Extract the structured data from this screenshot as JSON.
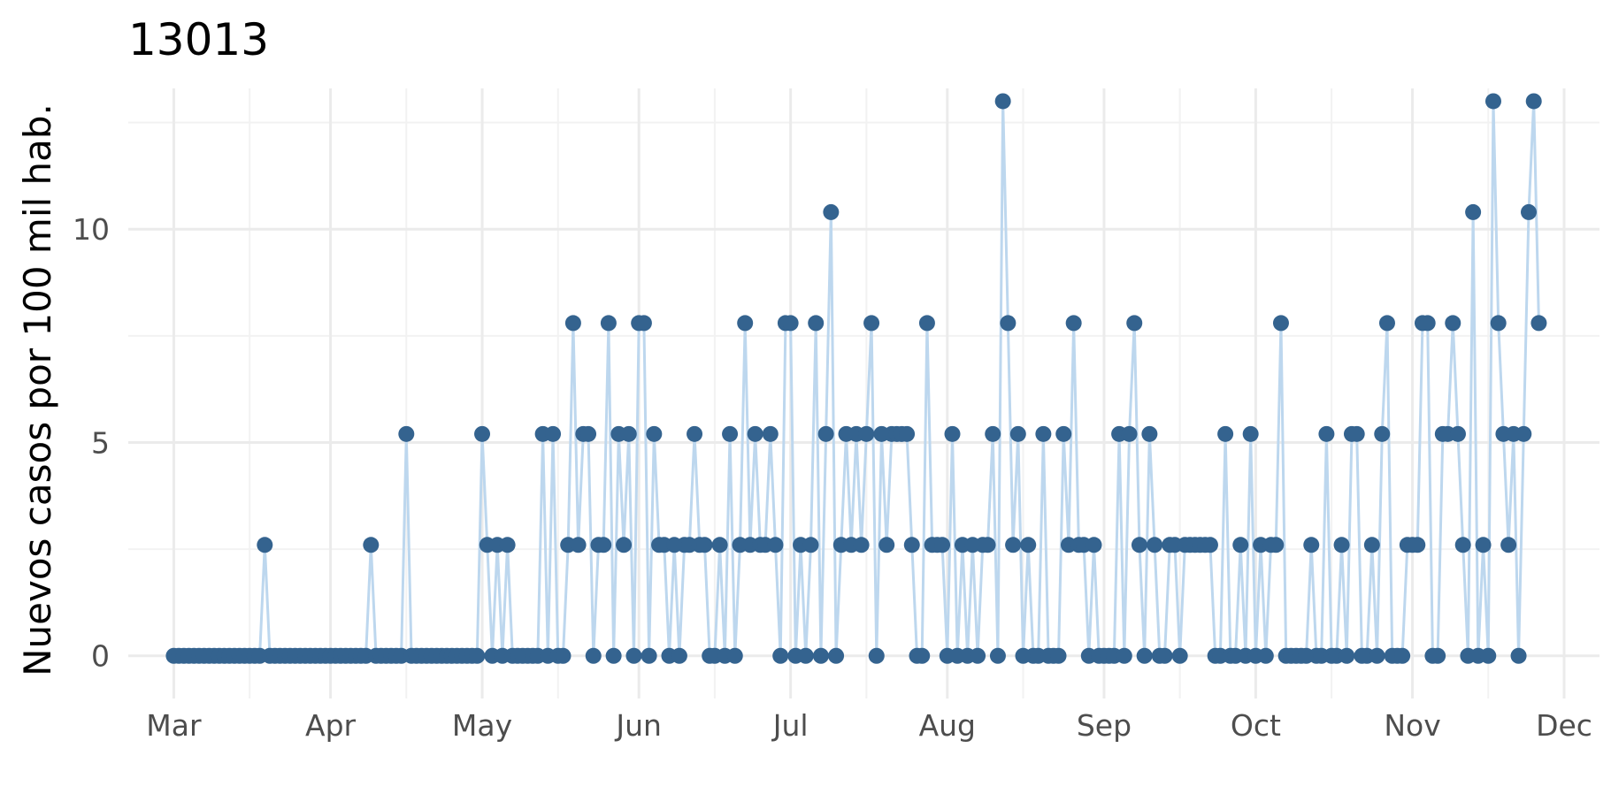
{
  "chart_data": {
    "type": "line",
    "title": "13013",
    "xlabel": "",
    "ylabel": "Nuevos casos por 100 mil hab.",
    "x_axis": {
      "kind": "date",
      "range": [
        "2020-02-21",
        "2020-12-08"
      ],
      "tick_labels": [
        "Mar",
        "Apr",
        "May",
        "Jun",
        "Jul",
        "Aug",
        "Sep",
        "Oct",
        "Nov",
        "Dec"
      ],
      "tick_dates": [
        "2020-03-01",
        "2020-04-01",
        "2020-05-01",
        "2020-06-01",
        "2020-07-01",
        "2020-08-01",
        "2020-09-01",
        "2020-10-01",
        "2020-11-01",
        "2020-12-01"
      ]
    },
    "y_axis": {
      "range": [
        -1,
        13.3
      ],
      "ticks": [
        0,
        5,
        10
      ],
      "tick_labels": [
        "0",
        "5",
        "10"
      ]
    },
    "grid": true,
    "legend": "none",
    "colors": {
      "line": "#bdd7ee",
      "point": "#34638f"
    },
    "series": [
      {
        "values": [
          [
            "2020-03-01",
            0
          ],
          [
            "2020-03-02",
            0
          ],
          [
            "2020-03-03",
            0
          ],
          [
            "2020-03-04",
            0
          ],
          [
            "2020-03-05",
            0
          ],
          [
            "2020-03-06",
            0
          ],
          [
            "2020-03-07",
            0
          ],
          [
            "2020-03-08",
            0
          ],
          [
            "2020-03-09",
            0
          ],
          [
            "2020-03-10",
            0
          ],
          [
            "2020-03-11",
            0
          ],
          [
            "2020-03-12",
            0
          ],
          [
            "2020-03-13",
            0
          ],
          [
            "2020-03-14",
            0
          ],
          [
            "2020-03-15",
            0
          ],
          [
            "2020-03-16",
            0
          ],
          [
            "2020-03-17",
            0
          ],
          [
            "2020-03-18",
            0
          ],
          [
            "2020-03-19",
            2.6
          ],
          [
            "2020-03-20",
            0
          ],
          [
            "2020-03-21",
            0
          ],
          [
            "2020-03-22",
            0
          ],
          [
            "2020-03-23",
            0
          ],
          [
            "2020-03-24",
            0
          ],
          [
            "2020-03-25",
            0
          ],
          [
            "2020-03-26",
            0
          ],
          [
            "2020-03-27",
            0
          ],
          [
            "2020-03-28",
            0
          ],
          [
            "2020-03-29",
            0
          ],
          [
            "2020-03-30",
            0
          ],
          [
            "2020-03-31",
            0
          ],
          [
            "2020-04-01",
            0
          ],
          [
            "2020-04-02",
            0
          ],
          [
            "2020-04-03",
            0
          ],
          [
            "2020-04-04",
            0
          ],
          [
            "2020-04-05",
            0
          ],
          [
            "2020-04-06",
            0
          ],
          [
            "2020-04-07",
            0
          ],
          [
            "2020-04-08",
            0
          ],
          [
            "2020-04-09",
            2.6
          ],
          [
            "2020-04-10",
            0
          ],
          [
            "2020-04-11",
            0
          ],
          [
            "2020-04-12",
            0
          ],
          [
            "2020-04-13",
            0
          ],
          [
            "2020-04-14",
            0
          ],
          [
            "2020-04-15",
            0
          ],
          [
            "2020-04-16",
            5.2
          ],
          [
            "2020-04-17",
            0
          ],
          [
            "2020-04-18",
            0
          ],
          [
            "2020-04-19",
            0
          ],
          [
            "2020-04-20",
            0
          ],
          [
            "2020-04-21",
            0
          ],
          [
            "2020-04-22",
            0
          ],
          [
            "2020-04-23",
            0
          ],
          [
            "2020-04-24",
            0
          ],
          [
            "2020-04-25",
            0
          ],
          [
            "2020-04-26",
            0
          ],
          [
            "2020-04-27",
            0
          ],
          [
            "2020-04-28",
            0
          ],
          [
            "2020-04-29",
            0
          ],
          [
            "2020-04-30",
            0
          ],
          [
            "2020-05-01",
            5.2
          ],
          [
            "2020-05-02",
            2.6
          ],
          [
            "2020-05-03",
            0
          ],
          [
            "2020-05-04",
            2.6
          ],
          [
            "2020-05-05",
            0
          ],
          [
            "2020-05-06",
            2.6
          ],
          [
            "2020-05-07",
            0
          ],
          [
            "2020-05-08",
            0
          ],
          [
            "2020-05-09",
            0
          ],
          [
            "2020-05-10",
            0
          ],
          [
            "2020-05-11",
            0
          ],
          [
            "2020-05-12",
            0
          ],
          [
            "2020-05-13",
            5.2
          ],
          [
            "2020-05-14",
            0
          ],
          [
            "2020-05-15",
            5.2
          ],
          [
            "2020-05-16",
            0
          ],
          [
            "2020-05-17",
            0
          ],
          [
            "2020-05-18",
            2.6
          ],
          [
            "2020-05-19",
            7.8
          ],
          [
            "2020-05-20",
            2.6
          ],
          [
            "2020-05-21",
            5.2
          ],
          [
            "2020-05-22",
            5.2
          ],
          [
            "2020-05-23",
            0
          ],
          [
            "2020-05-24",
            2.6
          ],
          [
            "2020-05-25",
            2.6
          ],
          [
            "2020-05-26",
            7.8
          ],
          [
            "2020-05-27",
            0
          ],
          [
            "2020-05-28",
            5.2
          ],
          [
            "2020-05-29",
            2.6
          ],
          [
            "2020-05-30",
            5.2
          ],
          [
            "2020-05-31",
            0
          ],
          [
            "2020-06-01",
            7.8
          ],
          [
            "2020-06-02",
            7.8
          ],
          [
            "2020-06-03",
            0
          ],
          [
            "2020-06-04",
            5.2
          ],
          [
            "2020-06-05",
            2.6
          ],
          [
            "2020-06-06",
            2.6
          ],
          [
            "2020-06-07",
            0
          ],
          [
            "2020-06-08",
            2.6
          ],
          [
            "2020-06-09",
            0
          ],
          [
            "2020-06-10",
            2.6
          ],
          [
            "2020-06-11",
            2.6
          ],
          [
            "2020-06-12",
            5.2
          ],
          [
            "2020-06-13",
            2.6
          ],
          [
            "2020-06-14",
            2.6
          ],
          [
            "2020-06-15",
            0
          ],
          [
            "2020-06-16",
            0
          ],
          [
            "2020-06-17",
            2.6
          ],
          [
            "2020-06-18",
            0
          ],
          [
            "2020-06-19",
            5.2
          ],
          [
            "2020-06-20",
            0
          ],
          [
            "2020-06-21",
            2.6
          ],
          [
            "2020-06-22",
            7.8
          ],
          [
            "2020-06-23",
            2.6
          ],
          [
            "2020-06-24",
            5.2
          ],
          [
            "2020-06-25",
            2.6
          ],
          [
            "2020-06-26",
            2.6
          ],
          [
            "2020-06-27",
            5.2
          ],
          [
            "2020-06-28",
            2.6
          ],
          [
            "2020-06-29",
            0
          ],
          [
            "2020-06-30",
            7.8
          ],
          [
            "2020-07-01",
            7.8
          ],
          [
            "2020-07-02",
            0
          ],
          [
            "2020-07-03",
            2.6
          ],
          [
            "2020-07-04",
            0
          ],
          [
            "2020-07-05",
            2.6
          ],
          [
            "2020-07-06",
            7.8
          ],
          [
            "2020-07-07",
            0
          ],
          [
            "2020-07-08",
            5.2
          ],
          [
            "2020-07-09",
            10.4
          ],
          [
            "2020-07-10",
            0
          ],
          [
            "2020-07-11",
            2.6
          ],
          [
            "2020-07-12",
            5.2
          ],
          [
            "2020-07-13",
            2.6
          ],
          [
            "2020-07-14",
            5.2
          ],
          [
            "2020-07-15",
            2.6
          ],
          [
            "2020-07-16",
            5.2
          ],
          [
            "2020-07-17",
            7.8
          ],
          [
            "2020-07-18",
            0
          ],
          [
            "2020-07-19",
            5.2
          ],
          [
            "2020-07-20",
            2.6
          ],
          [
            "2020-07-21",
            5.2
          ],
          [
            "2020-07-22",
            5.2
          ],
          [
            "2020-07-23",
            5.2
          ],
          [
            "2020-07-24",
            5.2
          ],
          [
            "2020-07-25",
            2.6
          ],
          [
            "2020-07-26",
            0
          ],
          [
            "2020-07-27",
            0
          ],
          [
            "2020-07-28",
            7.8
          ],
          [
            "2020-07-29",
            2.6
          ],
          [
            "2020-07-30",
            2.6
          ],
          [
            "2020-07-31",
            2.6
          ],
          [
            "2020-08-01",
            0
          ],
          [
            "2020-08-02",
            5.2
          ],
          [
            "2020-08-03",
            0
          ],
          [
            "2020-08-04",
            2.6
          ],
          [
            "2020-08-05",
            0
          ],
          [
            "2020-08-06",
            2.6
          ],
          [
            "2020-08-07",
            0
          ],
          [
            "2020-08-08",
            2.6
          ],
          [
            "2020-08-09",
            2.6
          ],
          [
            "2020-08-10",
            5.2
          ],
          [
            "2020-08-11",
            0
          ],
          [
            "2020-08-12",
            13
          ],
          [
            "2020-08-13",
            7.8
          ],
          [
            "2020-08-14",
            2.6
          ],
          [
            "2020-08-15",
            5.2
          ],
          [
            "2020-08-16",
            0
          ],
          [
            "2020-08-17",
            2.6
          ],
          [
            "2020-08-18",
            0
          ],
          [
            "2020-08-19",
            0
          ],
          [
            "2020-08-20",
            5.2
          ],
          [
            "2020-08-21",
            0
          ],
          [
            "2020-08-22",
            0
          ],
          [
            "2020-08-23",
            0
          ],
          [
            "2020-08-24",
            5.2
          ],
          [
            "2020-08-25",
            2.6
          ],
          [
            "2020-08-26",
            7.8
          ],
          [
            "2020-08-27",
            2.6
          ],
          [
            "2020-08-28",
            2.6
          ],
          [
            "2020-08-29",
            0
          ],
          [
            "2020-08-30",
            2.6
          ],
          [
            "2020-08-31",
            0
          ],
          [
            "2020-09-01",
            0
          ],
          [
            "2020-09-02",
            0
          ],
          [
            "2020-09-03",
            0
          ],
          [
            "2020-09-04",
            5.2
          ],
          [
            "2020-09-05",
            0
          ],
          [
            "2020-09-06",
            5.2
          ],
          [
            "2020-09-07",
            7.8
          ],
          [
            "2020-09-08",
            2.6
          ],
          [
            "2020-09-09",
            0
          ],
          [
            "2020-09-10",
            5.2
          ],
          [
            "2020-09-11",
            2.6
          ],
          [
            "2020-09-12",
            0
          ],
          [
            "2020-09-13",
            0
          ],
          [
            "2020-09-14",
            2.6
          ],
          [
            "2020-09-15",
            2.6
          ],
          [
            "2020-09-16",
            0
          ],
          [
            "2020-09-17",
            2.6
          ],
          [
            "2020-09-18",
            2.6
          ],
          [
            "2020-09-19",
            2.6
          ],
          [
            "2020-09-20",
            2.6
          ],
          [
            "2020-09-21",
            2.6
          ],
          [
            "2020-09-22",
            2.6
          ],
          [
            "2020-09-23",
            0
          ],
          [
            "2020-09-24",
            0
          ],
          [
            "2020-09-25",
            5.2
          ],
          [
            "2020-09-26",
            0
          ],
          [
            "2020-09-27",
            0
          ],
          [
            "2020-09-28",
            2.6
          ],
          [
            "2020-09-29",
            0
          ],
          [
            "2020-09-30",
            5.2
          ],
          [
            "2020-10-01",
            0
          ],
          [
            "2020-10-02",
            2.6
          ],
          [
            "2020-10-03",
            0
          ],
          [
            "2020-10-04",
            2.6
          ],
          [
            "2020-10-05",
            2.6
          ],
          [
            "2020-10-06",
            7.8
          ],
          [
            "2020-10-07",
            0
          ],
          [
            "2020-10-08",
            0
          ],
          [
            "2020-10-09",
            0
          ],
          [
            "2020-10-10",
            0
          ],
          [
            "2020-10-11",
            0
          ],
          [
            "2020-10-12",
            2.6
          ],
          [
            "2020-10-13",
            0
          ],
          [
            "2020-10-14",
            0
          ],
          [
            "2020-10-15",
            5.2
          ],
          [
            "2020-10-16",
            0
          ],
          [
            "2020-10-17",
            0
          ],
          [
            "2020-10-18",
            2.6
          ],
          [
            "2020-10-19",
            0
          ],
          [
            "2020-10-20",
            5.2
          ],
          [
            "2020-10-21",
            5.2
          ],
          [
            "2020-10-22",
            0
          ],
          [
            "2020-10-23",
            0
          ],
          [
            "2020-10-24",
            2.6
          ],
          [
            "2020-10-25",
            0
          ],
          [
            "2020-10-26",
            5.2
          ],
          [
            "2020-10-27",
            7.8
          ],
          [
            "2020-10-28",
            0
          ],
          [
            "2020-10-29",
            0
          ],
          [
            "2020-10-30",
            0
          ],
          [
            "2020-10-31",
            2.6
          ],
          [
            "2020-11-01",
            2.6
          ],
          [
            "2020-11-02",
            2.6
          ],
          [
            "2020-11-03",
            7.8
          ],
          [
            "2020-11-04",
            7.8
          ],
          [
            "2020-11-05",
            0
          ],
          [
            "2020-11-06",
            0
          ],
          [
            "2020-11-07",
            5.2
          ],
          [
            "2020-11-08",
            5.2
          ],
          [
            "2020-11-09",
            7.8
          ],
          [
            "2020-11-10",
            5.2
          ],
          [
            "2020-11-11",
            2.6
          ],
          [
            "2020-11-12",
            0
          ],
          [
            "2020-11-13",
            10.4
          ],
          [
            "2020-11-14",
            0
          ],
          [
            "2020-11-15",
            2.6
          ],
          [
            "2020-11-16",
            0
          ],
          [
            "2020-11-17",
            13
          ],
          [
            "2020-11-18",
            7.8
          ],
          [
            "2020-11-19",
            5.2
          ],
          [
            "2020-11-20",
            2.6
          ],
          [
            "2020-11-21",
            5.2
          ],
          [
            "2020-11-22",
            0
          ],
          [
            "2020-11-23",
            5.2
          ],
          [
            "2020-11-24",
            10.4
          ],
          [
            "2020-11-25",
            13
          ],
          [
            "2020-11-26",
            7.8
          ]
        ]
      }
    ]
  }
}
